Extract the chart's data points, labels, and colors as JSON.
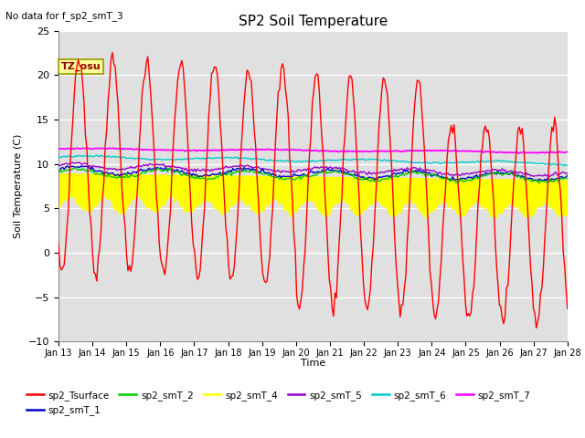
{
  "title": "SP2 Soil Temperature",
  "no_data_label": "No data for f_sp2_smT_3",
  "tz_label": "TZ_osu",
  "xlabel": "Time",
  "ylabel": "Soil Temperature (C)",
  "ylim": [
    -10,
    25
  ],
  "yticks": [
    -10,
    -5,
    0,
    5,
    10,
    15,
    20,
    25
  ],
  "fig_bg_color": "#ffffff",
  "plot_bg_color": "#e0e0e0",
  "grid_color": "#ffffff",
  "series_colors": {
    "sp2_Tsurface": "#ff0000",
    "sp2_smT_1": "#0000cc",
    "sp2_smT_2": "#00cc00",
    "sp2_smT_4": "#ffff00",
    "sp2_smT_5": "#9900cc",
    "sp2_smT_6": "#00cccc",
    "sp2_smT_7": "#ff00ff"
  }
}
